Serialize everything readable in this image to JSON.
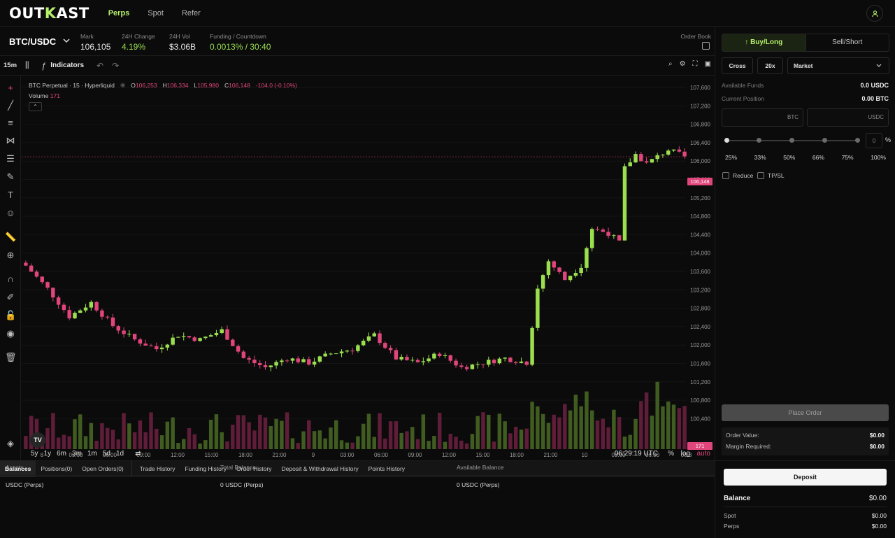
{
  "header": {
    "logo": {
      "part1": "OUT",
      "part2": "K",
      "part3": "AST"
    },
    "nav": [
      {
        "label": "Perps"
      },
      {
        "label": "Spot"
      },
      {
        "label": "Refer"
      }
    ],
    "user_icon": "user-icon"
  },
  "ticker": {
    "pair": "BTC/USDC",
    "stats": [
      {
        "label": "Mark",
        "value": "106,105"
      },
      {
        "label": "24H Change",
        "value": "4.19%"
      },
      {
        "label": "24H Vol",
        "value": "$3.06B"
      },
      {
        "label": "Funding / Countdown",
        "value": "0.0013% / 30:40"
      }
    ],
    "order_book_label": "Order Book"
  },
  "chart_toolbar": {
    "timeframe": "15m",
    "indicators_label": "Indicators"
  },
  "chart_legend": {
    "symbol": "BTC Perpetual · 15 · Hyperliquid",
    "o_label": "O",
    "o_value": "106,253",
    "h_label": "H",
    "h_value": "106,334",
    "l_label": "L",
    "l_value": "105,980",
    "c_label": "C",
    "c_value": "106,148",
    "change": "-104.0 (-0.10%)",
    "volume_label": "Volume",
    "volume_value": "171"
  },
  "chart_data": {
    "type": "candlestick",
    "y_ticks": [
      "107,600",
      "107,200",
      "106,800",
      "106,400",
      "106,000",
      "105,600",
      "105,200",
      "104,800",
      "104,400",
      "104,000",
      "103,600",
      "103,200",
      "102,800",
      "102,400",
      "102,000",
      "101,600",
      "101,200",
      "100,800",
      "100,400"
    ],
    "x_ticks": [
      "8",
      "03:00",
      "06:00",
      "09:00",
      "12:00",
      "15:00",
      "18:00",
      "21:00",
      "9",
      "03:00",
      "06:00",
      "09:00",
      "12:00",
      "15:00",
      "18:00",
      "21:00",
      "10",
      "03:00",
      "06:00",
      "08:3"
    ],
    "current_price_label": "106,148",
    "volume_label": "171",
    "ylim": [
      100200,
      107900
    ],
    "close_path": [
      [
        0,
        103800
      ],
      [
        4,
        103300
      ],
      [
        8,
        102700
      ],
      [
        12,
        103000
      ],
      [
        16,
        102500
      ],
      [
        20,
        102200
      ],
      [
        24,
        102000
      ],
      [
        28,
        102300
      ],
      [
        32,
        102200
      ],
      [
        36,
        102400
      ],
      [
        40,
        101800
      ],
      [
        44,
        101600
      ],
      [
        48,
        101800
      ],
      [
        52,
        101700
      ],
      [
        56,
        101900
      ],
      [
        60,
        102000
      ],
      [
        64,
        102300
      ],
      [
        68,
        101800
      ],
      [
        72,
        101700
      ],
      [
        76,
        101900
      ],
      [
        80,
        101600
      ],
      [
        84,
        101700
      ],
      [
        88,
        101800
      ],
      [
        92,
        101700
      ],
      [
        94,
        103300
      ],
      [
        96,
        103900
      ],
      [
        99,
        103500
      ],
      [
        102,
        103800
      ],
      [
        104,
        104600
      ],
      [
        107,
        104500
      ],
      [
        109,
        104300
      ],
      [
        110,
        105900
      ],
      [
        112,
        106200
      ],
      [
        114,
        106000
      ],
      [
        118,
        106300
      ],
      [
        121,
        106150
      ]
    ],
    "colors": {
      "up": "#9bdf4f",
      "down": "#e0457b"
    }
  },
  "range_bar": {
    "ranges": [
      "5y",
      "1y",
      "6m",
      "3m",
      "1m",
      "5d",
      "1d"
    ],
    "clock": "06:29:19 UTC",
    "percent": "%",
    "log": "log",
    "auto": "auto"
  },
  "bottom_tabs": {
    "group1": [
      "Balances",
      "Positions(0)",
      "Open Orders(0)"
    ],
    "group2": [
      "Trade History",
      "Funding History",
      "Order History",
      "Deposit & Withdrawal History",
      "Points History"
    ]
  },
  "balances_table": {
    "headers": [
      "Assets",
      "Total Balance",
      "Available Balance"
    ],
    "rows": [
      [
        "USDC (Perps)",
        "0 USDC (Perps)",
        "0 USDC (Perps)"
      ]
    ]
  },
  "order_panel": {
    "buy_label": "Buy/Long",
    "sell_label": "Sell/Short",
    "margin_mode": "Cross",
    "leverage": "20x",
    "order_type": "Market",
    "available_funds_label": "Available Funds",
    "available_funds_value": "0.0 USDC",
    "current_position_label": "Current Position",
    "current_position_value": "0.00 BTC",
    "size_btc_placeholder": "BTC",
    "size_usdc_placeholder": "USDC",
    "slider_value": "0",
    "percent_sign": "%",
    "percents": [
      "25%",
      "33%",
      "50%",
      "66%",
      "75%",
      "100%"
    ],
    "reduce_label": "Reduce",
    "tpsl_label": "TP/SL",
    "place_order_label": "Place Order",
    "order_value_label": "Order Value:",
    "order_value": "$0.00",
    "margin_required_label": "Margin Required:",
    "margin_required": "$0.00",
    "deposit_label": "Deposit",
    "balance_label": "Balance",
    "balance_value": "$0.00",
    "spot_label": "Spot",
    "spot_value": "$0.00",
    "perps_label": "Perps",
    "perps_value": "$0.00"
  }
}
